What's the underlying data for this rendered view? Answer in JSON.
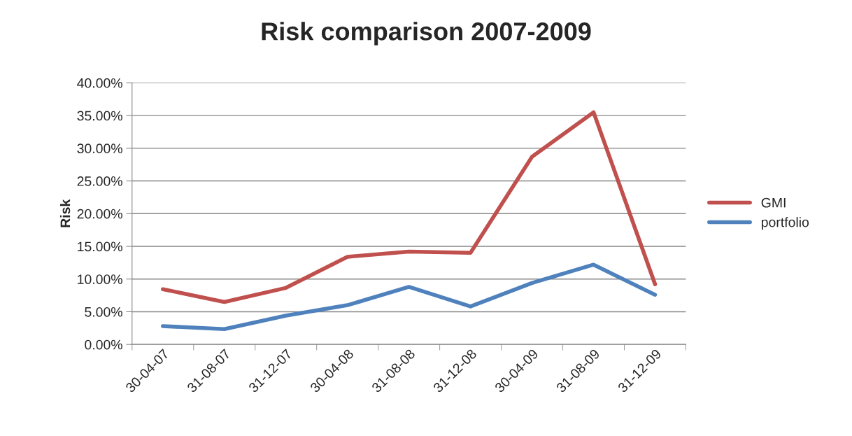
{
  "chart_data": {
    "type": "line",
    "title": "Risk comparison 2007-2009",
    "ylabel": "Risk",
    "categories": [
      "30-04-07",
      "31-08-07",
      "31-12-07",
      "30-04-08",
      "31-08-08",
      "31-12-08",
      "30-04-09",
      "31-08-09",
      "31-12-09"
    ],
    "series": [
      {
        "name": "GMI",
        "color": "#c0504d",
        "values": [
          8.45,
          6.5,
          8.65,
          13.4,
          14.2,
          14.0,
          28.7,
          35.5,
          9.2
        ]
      },
      {
        "name": "portfolio",
        "color": "#4f81bd",
        "values": [
          2.8,
          2.35,
          4.4,
          6.0,
          8.8,
          5.8,
          9.4,
          12.2,
          7.6
        ]
      }
    ],
    "ylim": [
      0,
      40
    ],
    "yticks": [
      {
        "value": 0,
        "label": "0.00%"
      },
      {
        "value": 5,
        "label": "5.00%"
      },
      {
        "value": 10,
        "label": "10.00%"
      },
      {
        "value": 15,
        "label": "15.00%"
      },
      {
        "value": 20,
        "label": "20.00%"
      },
      {
        "value": 25,
        "label": "25.00%"
      },
      {
        "value": 30,
        "label": "30.00%"
      },
      {
        "value": 35,
        "label": "35.00%"
      },
      {
        "value": 40,
        "label": "40.00%"
      }
    ],
    "grid": "y",
    "legend": "right",
    "marker": "none",
    "line_style": "solid"
  }
}
